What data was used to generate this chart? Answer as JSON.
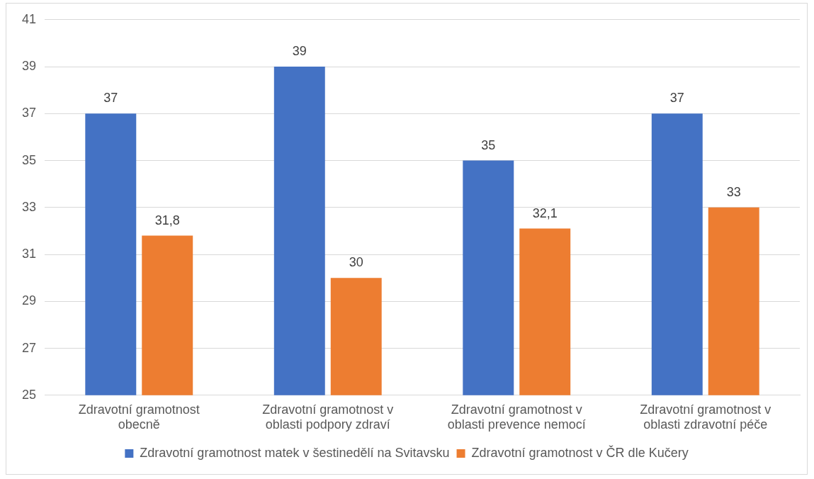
{
  "chart_data": {
    "type": "bar",
    "categories": [
      "Zdravotní gramotnost obecně",
      "Zdravotní gramotnost v oblasti podpory zdraví",
      "Zdravotní gramotnost v oblasti prevence nemocí",
      "Zdravotní gramotnost v oblasti zdravotní péče"
    ],
    "series": [
      {
        "name": "Zdravotní gramotnost matek v šestinedělí na Svitavsku",
        "color": "#4472c4",
        "values": [
          37,
          39,
          35,
          37
        ],
        "value_labels": [
          "37",
          "39",
          "35",
          "37"
        ]
      },
      {
        "name": "Zdravotní gramotnost v ČR dle Kučery",
        "color": "#ed7d31",
        "values": [
          31.8,
          30,
          32.1,
          33
        ],
        "value_labels": [
          "31,8",
          "30",
          "32,1",
          "33"
        ]
      }
    ],
    "ylim": [
      25,
      41
    ],
    "yticks": [
      25,
      27,
      29,
      31,
      33,
      35,
      37,
      39,
      41
    ],
    "grid": "y",
    "legend": "bottom"
  }
}
